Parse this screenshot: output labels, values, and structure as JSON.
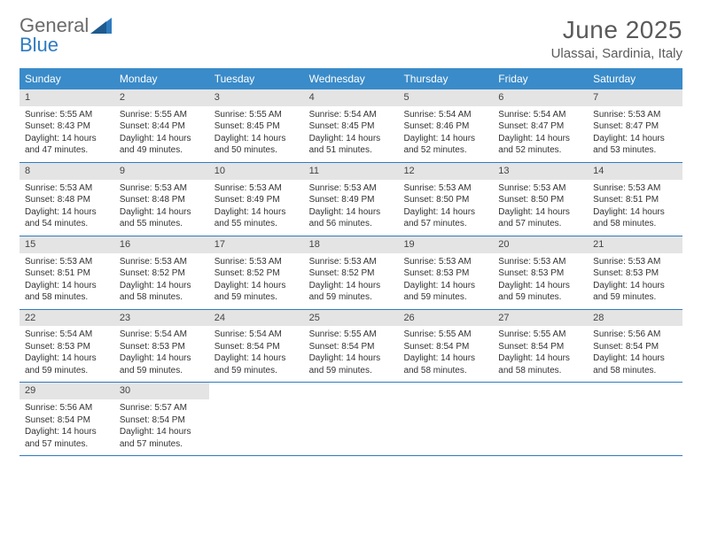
{
  "logo": {
    "line1": "General",
    "line2": "Blue"
  },
  "title": "June 2025",
  "location": "Ulassai, Sardinia, Italy",
  "colors": {
    "header_bg": "#3a8bc9",
    "header_text": "#ffffff",
    "daynum_bg": "#e4e4e4",
    "rule": "#2f7bbf",
    "text": "#333333",
    "logo_gray": "#6b6b6b",
    "logo_blue": "#2f7bbf"
  },
  "weekdays": [
    "Sunday",
    "Monday",
    "Tuesday",
    "Wednesday",
    "Thursday",
    "Friday",
    "Saturday"
  ],
  "weeks": [
    [
      {
        "n": "1",
        "sunrise": "5:55 AM",
        "sunset": "8:43 PM",
        "daylight": "14 hours and 47 minutes."
      },
      {
        "n": "2",
        "sunrise": "5:55 AM",
        "sunset": "8:44 PM",
        "daylight": "14 hours and 49 minutes."
      },
      {
        "n": "3",
        "sunrise": "5:55 AM",
        "sunset": "8:45 PM",
        "daylight": "14 hours and 50 minutes."
      },
      {
        "n": "4",
        "sunrise": "5:54 AM",
        "sunset": "8:45 PM",
        "daylight": "14 hours and 51 minutes."
      },
      {
        "n": "5",
        "sunrise": "5:54 AM",
        "sunset": "8:46 PM",
        "daylight": "14 hours and 52 minutes."
      },
      {
        "n": "6",
        "sunrise": "5:54 AM",
        "sunset": "8:47 PM",
        "daylight": "14 hours and 52 minutes."
      },
      {
        "n": "7",
        "sunrise": "5:53 AM",
        "sunset": "8:47 PM",
        "daylight": "14 hours and 53 minutes."
      }
    ],
    [
      {
        "n": "8",
        "sunrise": "5:53 AM",
        "sunset": "8:48 PM",
        "daylight": "14 hours and 54 minutes."
      },
      {
        "n": "9",
        "sunrise": "5:53 AM",
        "sunset": "8:48 PM",
        "daylight": "14 hours and 55 minutes."
      },
      {
        "n": "10",
        "sunrise": "5:53 AM",
        "sunset": "8:49 PM",
        "daylight": "14 hours and 55 minutes."
      },
      {
        "n": "11",
        "sunrise": "5:53 AM",
        "sunset": "8:49 PM",
        "daylight": "14 hours and 56 minutes."
      },
      {
        "n": "12",
        "sunrise": "5:53 AM",
        "sunset": "8:50 PM",
        "daylight": "14 hours and 57 minutes."
      },
      {
        "n": "13",
        "sunrise": "5:53 AM",
        "sunset": "8:50 PM",
        "daylight": "14 hours and 57 minutes."
      },
      {
        "n": "14",
        "sunrise": "5:53 AM",
        "sunset": "8:51 PM",
        "daylight": "14 hours and 58 minutes."
      }
    ],
    [
      {
        "n": "15",
        "sunrise": "5:53 AM",
        "sunset": "8:51 PM",
        "daylight": "14 hours and 58 minutes."
      },
      {
        "n": "16",
        "sunrise": "5:53 AM",
        "sunset": "8:52 PM",
        "daylight": "14 hours and 58 minutes."
      },
      {
        "n": "17",
        "sunrise": "5:53 AM",
        "sunset": "8:52 PM",
        "daylight": "14 hours and 59 minutes."
      },
      {
        "n": "18",
        "sunrise": "5:53 AM",
        "sunset": "8:52 PM",
        "daylight": "14 hours and 59 minutes."
      },
      {
        "n": "19",
        "sunrise": "5:53 AM",
        "sunset": "8:53 PM",
        "daylight": "14 hours and 59 minutes."
      },
      {
        "n": "20",
        "sunrise": "5:53 AM",
        "sunset": "8:53 PM",
        "daylight": "14 hours and 59 minutes."
      },
      {
        "n": "21",
        "sunrise": "5:53 AM",
        "sunset": "8:53 PM",
        "daylight": "14 hours and 59 minutes."
      }
    ],
    [
      {
        "n": "22",
        "sunrise": "5:54 AM",
        "sunset": "8:53 PM",
        "daylight": "14 hours and 59 minutes."
      },
      {
        "n": "23",
        "sunrise": "5:54 AM",
        "sunset": "8:53 PM",
        "daylight": "14 hours and 59 minutes."
      },
      {
        "n": "24",
        "sunrise": "5:54 AM",
        "sunset": "8:54 PM",
        "daylight": "14 hours and 59 minutes."
      },
      {
        "n": "25",
        "sunrise": "5:55 AM",
        "sunset": "8:54 PM",
        "daylight": "14 hours and 59 minutes."
      },
      {
        "n": "26",
        "sunrise": "5:55 AM",
        "sunset": "8:54 PM",
        "daylight": "14 hours and 58 minutes."
      },
      {
        "n": "27",
        "sunrise": "5:55 AM",
        "sunset": "8:54 PM",
        "daylight": "14 hours and 58 minutes."
      },
      {
        "n": "28",
        "sunrise": "5:56 AM",
        "sunset": "8:54 PM",
        "daylight": "14 hours and 58 minutes."
      }
    ],
    [
      {
        "n": "29",
        "sunrise": "5:56 AM",
        "sunset": "8:54 PM",
        "daylight": "14 hours and 57 minutes."
      },
      {
        "n": "30",
        "sunrise": "5:57 AM",
        "sunset": "8:54 PM",
        "daylight": "14 hours and 57 minutes."
      },
      {
        "empty": true
      },
      {
        "empty": true
      },
      {
        "empty": true
      },
      {
        "empty": true
      },
      {
        "empty": true
      }
    ]
  ],
  "labels": {
    "sunrise": "Sunrise:",
    "sunset": "Sunset:",
    "daylight": "Daylight:"
  }
}
